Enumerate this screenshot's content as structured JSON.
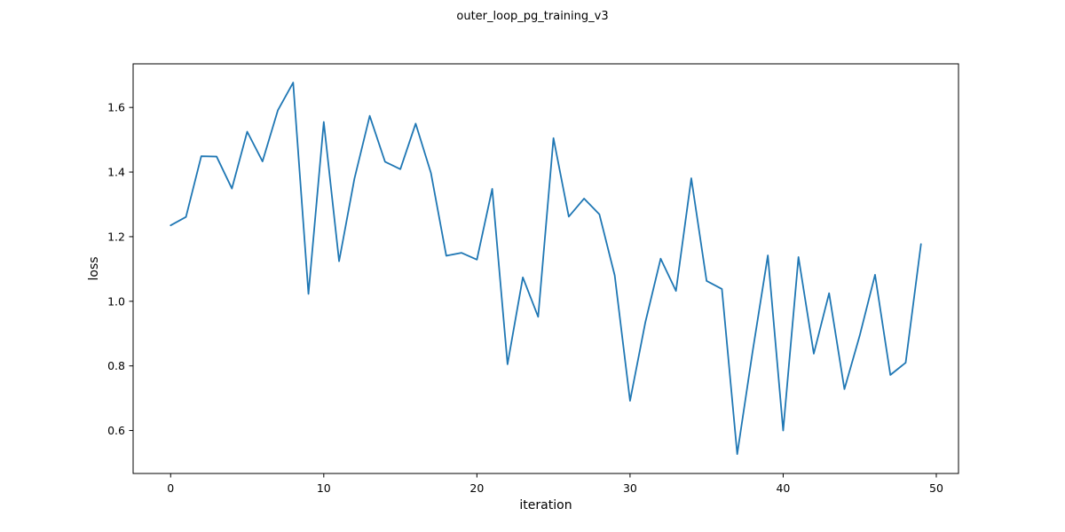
{
  "chart_data": {
    "type": "line",
    "title": "outer_loop_pg_training_v3",
    "xlabel": "iteration",
    "ylabel": "loss",
    "xlim": [
      -2.45,
      51.45
    ],
    "ylim": [
      0.467,
      1.735
    ],
    "xticks": [
      0,
      10,
      20,
      30,
      40,
      50
    ],
    "yticks": [
      0.6,
      0.8,
      1.0,
      1.2,
      1.4,
      1.6
    ],
    "xtick_labels": [
      "0",
      "10",
      "20",
      "30",
      "40",
      "50"
    ],
    "ytick_labels": [
      "0.6",
      "0.8",
      "1.0",
      "1.2",
      "1.4",
      "1.6"
    ],
    "grid": false,
    "line_color": "#1f77b4",
    "x": [
      0,
      1,
      2,
      3,
      4,
      5,
      6,
      7,
      8,
      9,
      10,
      11,
      12,
      13,
      14,
      15,
      16,
      17,
      18,
      19,
      20,
      21,
      22,
      23,
      24,
      25,
      26,
      27,
      28,
      29,
      30,
      31,
      32,
      33,
      34,
      35,
      36,
      37,
      38,
      39,
      40,
      41,
      42,
      43,
      44,
      45,
      46,
      47,
      48,
      49
    ],
    "y": [
      1.235,
      1.261,
      1.449,
      1.448,
      1.349,
      1.525,
      1.433,
      1.591,
      1.677,
      1.023,
      1.555,
      1.124,
      1.379,
      1.574,
      1.432,
      1.409,
      1.55,
      1.397,
      1.141,
      1.15,
      1.129,
      1.348,
      0.805,
      1.074,
      0.952,
      1.505,
      1.262,
      1.318,
      1.269,
      1.08,
      0.692,
      0.935,
      1.132,
      1.032,
      1.381,
      1.063,
      1.038,
      0.527,
      0.843,
      1.142,
      0.6,
      1.137,
      0.838,
      1.025,
      0.728,
      0.894,
      1.082,
      0.772,
      0.81,
      1.177
    ]
  }
}
